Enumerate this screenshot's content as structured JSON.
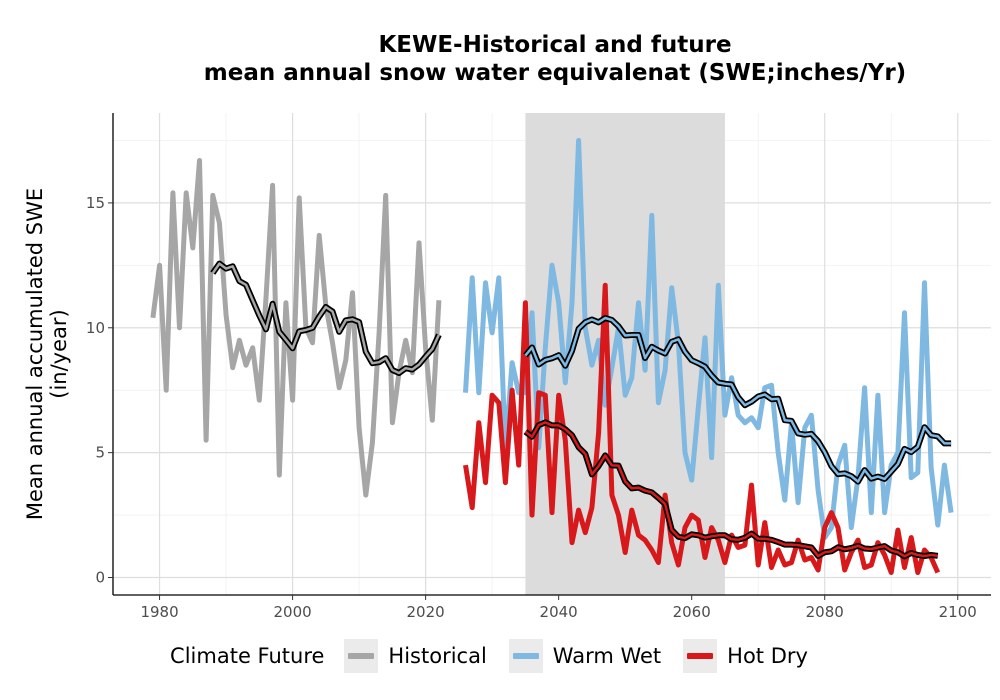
{
  "chart_data": {
    "type": "line",
    "title_lines": [
      "KEWE-Historical and future",
      "mean annual snow water equivalenat (SWE;inches/Yr)"
    ],
    "ylabel_lines": [
      "Mean annual accumulated SWE",
      "(in/year)"
    ],
    "xlabel": "",
    "xlim": [
      1973,
      2105
    ],
    "ylim": [
      -0.7,
      18.6
    ],
    "xticks": [
      1980,
      2000,
      2020,
      2040,
      2060,
      2080,
      2100
    ],
    "yticks": [
      0,
      5,
      10,
      15
    ],
    "grid": true,
    "legend_position": "bottom",
    "shaded_period": {
      "x_start": 2035,
      "x_end": 2065
    },
    "legend": {
      "title": "Climate Future",
      "items": [
        {
          "label": "Historical",
          "color": "#a6a6a6"
        },
        {
          "label": "Warm Wet",
          "color": "#7fb8e0"
        },
        {
          "label": "Hot Dry",
          "color": "#d7191c"
        }
      ]
    },
    "series": [
      {
        "name": "Historical",
        "color": "#a6a6a6",
        "x_start": 1979,
        "values": [
          10.4,
          12.5,
          7.5,
          15.4,
          10.0,
          15.4,
          13.2,
          16.7,
          5.5,
          15.3,
          14.2,
          10.5,
          8.4,
          9.5,
          8.5,
          9.2,
          7.1,
          11.2,
          15.7,
          4.1,
          11.0,
          7.1,
          15.2,
          10.0,
          9.4,
          13.7,
          10.9,
          9.4,
          7.6,
          8.7,
          11.4,
          6.0,
          3.3,
          5.4,
          9.8,
          15.3,
          6.2,
          8.2,
          9.5,
          8.2,
          13.4,
          9.2,
          6.3,
          11.1
        ]
      },
      {
        "name": "Warm Wet",
        "color": "#7fb8e0",
        "x_start": 2026,
        "values": [
          7.4,
          12.0,
          7.4,
          11.8,
          9.8,
          12.0,
          5.1,
          8.6,
          7.4,
          7.4,
          10.6,
          5.2,
          9.2,
          12.5,
          11.0,
          7.8,
          11.0,
          17.5,
          10.0,
          8.5,
          9.5,
          6.9,
          8.4,
          10.0,
          7.3,
          8.0,
          11.0,
          8.3,
          14.5,
          7.0,
          8.3,
          11.6,
          9.4,
          5.0,
          3.9,
          6.8,
          9.6,
          4.8,
          11.7,
          6.5,
          8.0,
          6.5,
          6.2,
          6.4,
          6.0,
          7.6,
          7.7,
          5.0,
          3.1,
          6.2,
          3.0,
          6.0,
          6.5,
          3.5,
          1.6,
          2.0,
          4.5,
          5.3,
          2.0,
          4.0,
          7.6,
          2.6,
          7.3,
          2.6,
          4.5,
          5.0,
          10.6,
          4.0,
          4.2,
          11.8,
          4.4,
          2.1,
          4.5,
          2.6
        ]
      },
      {
        "name": "Hot Dry",
        "color": "#d7191c",
        "x_start": 2026,
        "values": [
          4.5,
          2.8,
          6.2,
          3.8,
          7.3,
          7.0,
          3.8,
          7.5,
          4.5,
          11.0,
          2.5,
          7.4,
          7.3,
          2.6,
          7.3,
          5.5,
          1.4,
          2.7,
          1.8,
          2.8,
          5.8,
          11.7,
          3.3,
          2.5,
          1.0,
          2.7,
          1.7,
          1.5,
          1.1,
          0.6,
          3.3,
          1.4,
          0.5,
          2.0,
          2.5,
          2.3,
          0.8,
          2.0,
          1.5,
          0.6,
          1.7,
          1.2,
          1.3,
          3.7,
          0.5,
          2.2,
          0.4,
          1.1,
          0.5,
          0.6,
          1.5,
          0.7,
          0.8,
          0.3,
          2.0,
          2.6,
          2.0,
          0.3,
          1.0,
          1.5,
          0.4,
          0.5,
          1.4,
          0.9,
          0.2,
          1.9,
          0.4,
          1.6,
          0.2,
          1.1,
          0.8,
          0.2
        ]
      }
    ],
    "smoothed_series_color": "#000000"
  }
}
